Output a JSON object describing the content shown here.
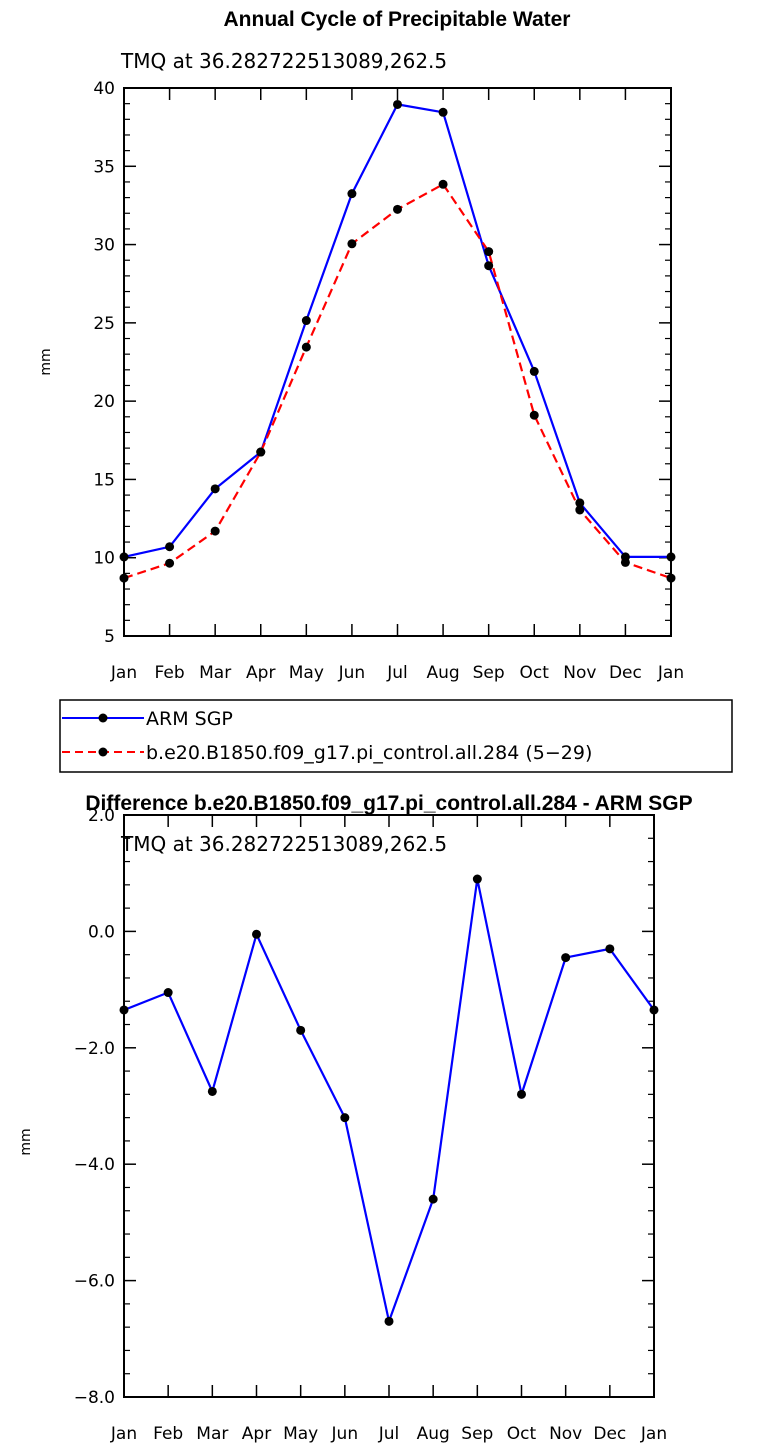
{
  "chart_data": [
    {
      "type": "line",
      "title": "Annual Cycle of Precipitable Water",
      "subtitle": "TMQ at 36.282722513089,262.5",
      "xlabel": "",
      "ylabel": "mm",
      "categories": [
        "Jan",
        "Feb",
        "Mar",
        "Apr",
        "May",
        "Jun",
        "Jul",
        "Aug",
        "Sep",
        "Oct",
        "Nov",
        "Dec",
        "Jan"
      ],
      "ylim": [
        5,
        40
      ],
      "yticks": [
        "5",
        "10",
        "15",
        "20",
        "25",
        "30",
        "35",
        "40"
      ],
      "ytick_values": [
        5,
        10,
        15,
        20,
        25,
        30,
        35,
        40
      ],
      "series": [
        {
          "name": "ARM SGP",
          "color": "#0000ff",
          "dash": "solid",
          "marker": "circle",
          "values": [
            10.05,
            10.7,
            14.4,
            16.75,
            25.15,
            33.25,
            38.95,
            38.45,
            28.65,
            21.9,
            13.5,
            10.05,
            10.05
          ]
        },
        {
          "name": "b.e20.B1850.f09_g17.pi_control.all.284 (5−29)",
          "color": "#ff0000",
          "dash": "dashed",
          "marker": "circle",
          "values": [
            8.7,
            9.65,
            11.7,
            16.75,
            23.45,
            30.05,
            32.25,
            33.85,
            29.55,
            19.1,
            13.05,
            9.7,
            8.7
          ]
        }
      ],
      "legend": [
        "ARM SGP",
        "b.e20.B1850.f09_g17.pi_control.all.284 (5−29)"
      ],
      "legend_placement": "below plot"
    },
    {
      "type": "line",
      "title": "Difference b.e20.B1850.f09_g17.pi_control.all.284 - ARM SGP",
      "subtitle": "TMQ at 36.282722513089,262.5",
      "xlabel": "",
      "ylabel": "mm",
      "categories": [
        "Jan",
        "Feb",
        "Mar",
        "Apr",
        "May",
        "Jun",
        "Jul",
        "Aug",
        "Sep",
        "Oct",
        "Nov",
        "Dec",
        "Jan"
      ],
      "ylim": [
        -8,
        2
      ],
      "yticks": [
        "−8.0",
        "−6.0",
        "−4.0",
        "−2.0",
        "0.0",
        "2.0"
      ],
      "ytick_values": [
        -8,
        -6,
        -4,
        -2,
        0,
        2
      ],
      "series": [
        {
          "color": "#0000ff",
          "dash": "solid",
          "marker": "circle",
          "values": [
            -1.35,
            -1.05,
            -2.75,
            -0.05,
            -1.7,
            -3.2,
            -6.7,
            -4.6,
            0.9,
            -2.8,
            -0.45,
            -0.3,
            -1.35
          ]
        }
      ]
    }
  ]
}
